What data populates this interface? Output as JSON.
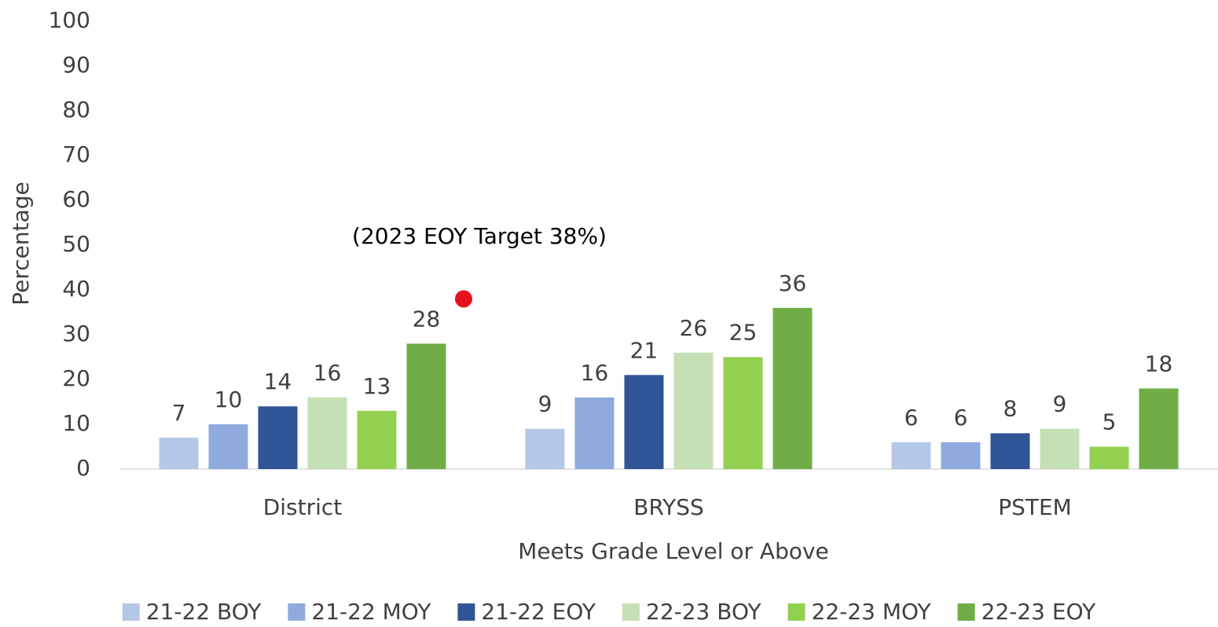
{
  "chart_data": {
    "type": "bar",
    "x_label": "Meets Grade Level or Above",
    "y_label": "Percentage",
    "categories": [
      "District",
      "BRYSS",
      "PSTEM"
    ],
    "series": [
      {
        "name": "21-22 BOY",
        "color": "#b4c7e7",
        "values": [
          7,
          9,
          6
        ]
      },
      {
        "name": "21-22 MOY",
        "color": "#8faadc",
        "values": [
          10,
          16,
          6
        ]
      },
      {
        "name": "21-22 EOY",
        "color": "#2f5597",
        "values": [
          14,
          21,
          8
        ]
      },
      {
        "name": "22-23 BOY",
        "color": "#c5e0b4",
        "values": [
          16,
          26,
          9
        ]
      },
      {
        "name": "22-23 MOY",
        "color": "#92d050",
        "values": [
          13,
          25,
          5
        ]
      },
      {
        "name": "22-23 EOY",
        "color": "#70ad47",
        "values": [
          28,
          36,
          18
        ]
      }
    ],
    "annotation": "(2023 EOY Target 38%)",
    "target": 38,
    "target_color": "#e81123",
    "ylim": [
      0,
      100
    ],
    "yticks": [
      0,
      10,
      20,
      30,
      40,
      50,
      60,
      70,
      80,
      90,
      100
    ],
    "grid": false,
    "legend": "bottom"
  }
}
